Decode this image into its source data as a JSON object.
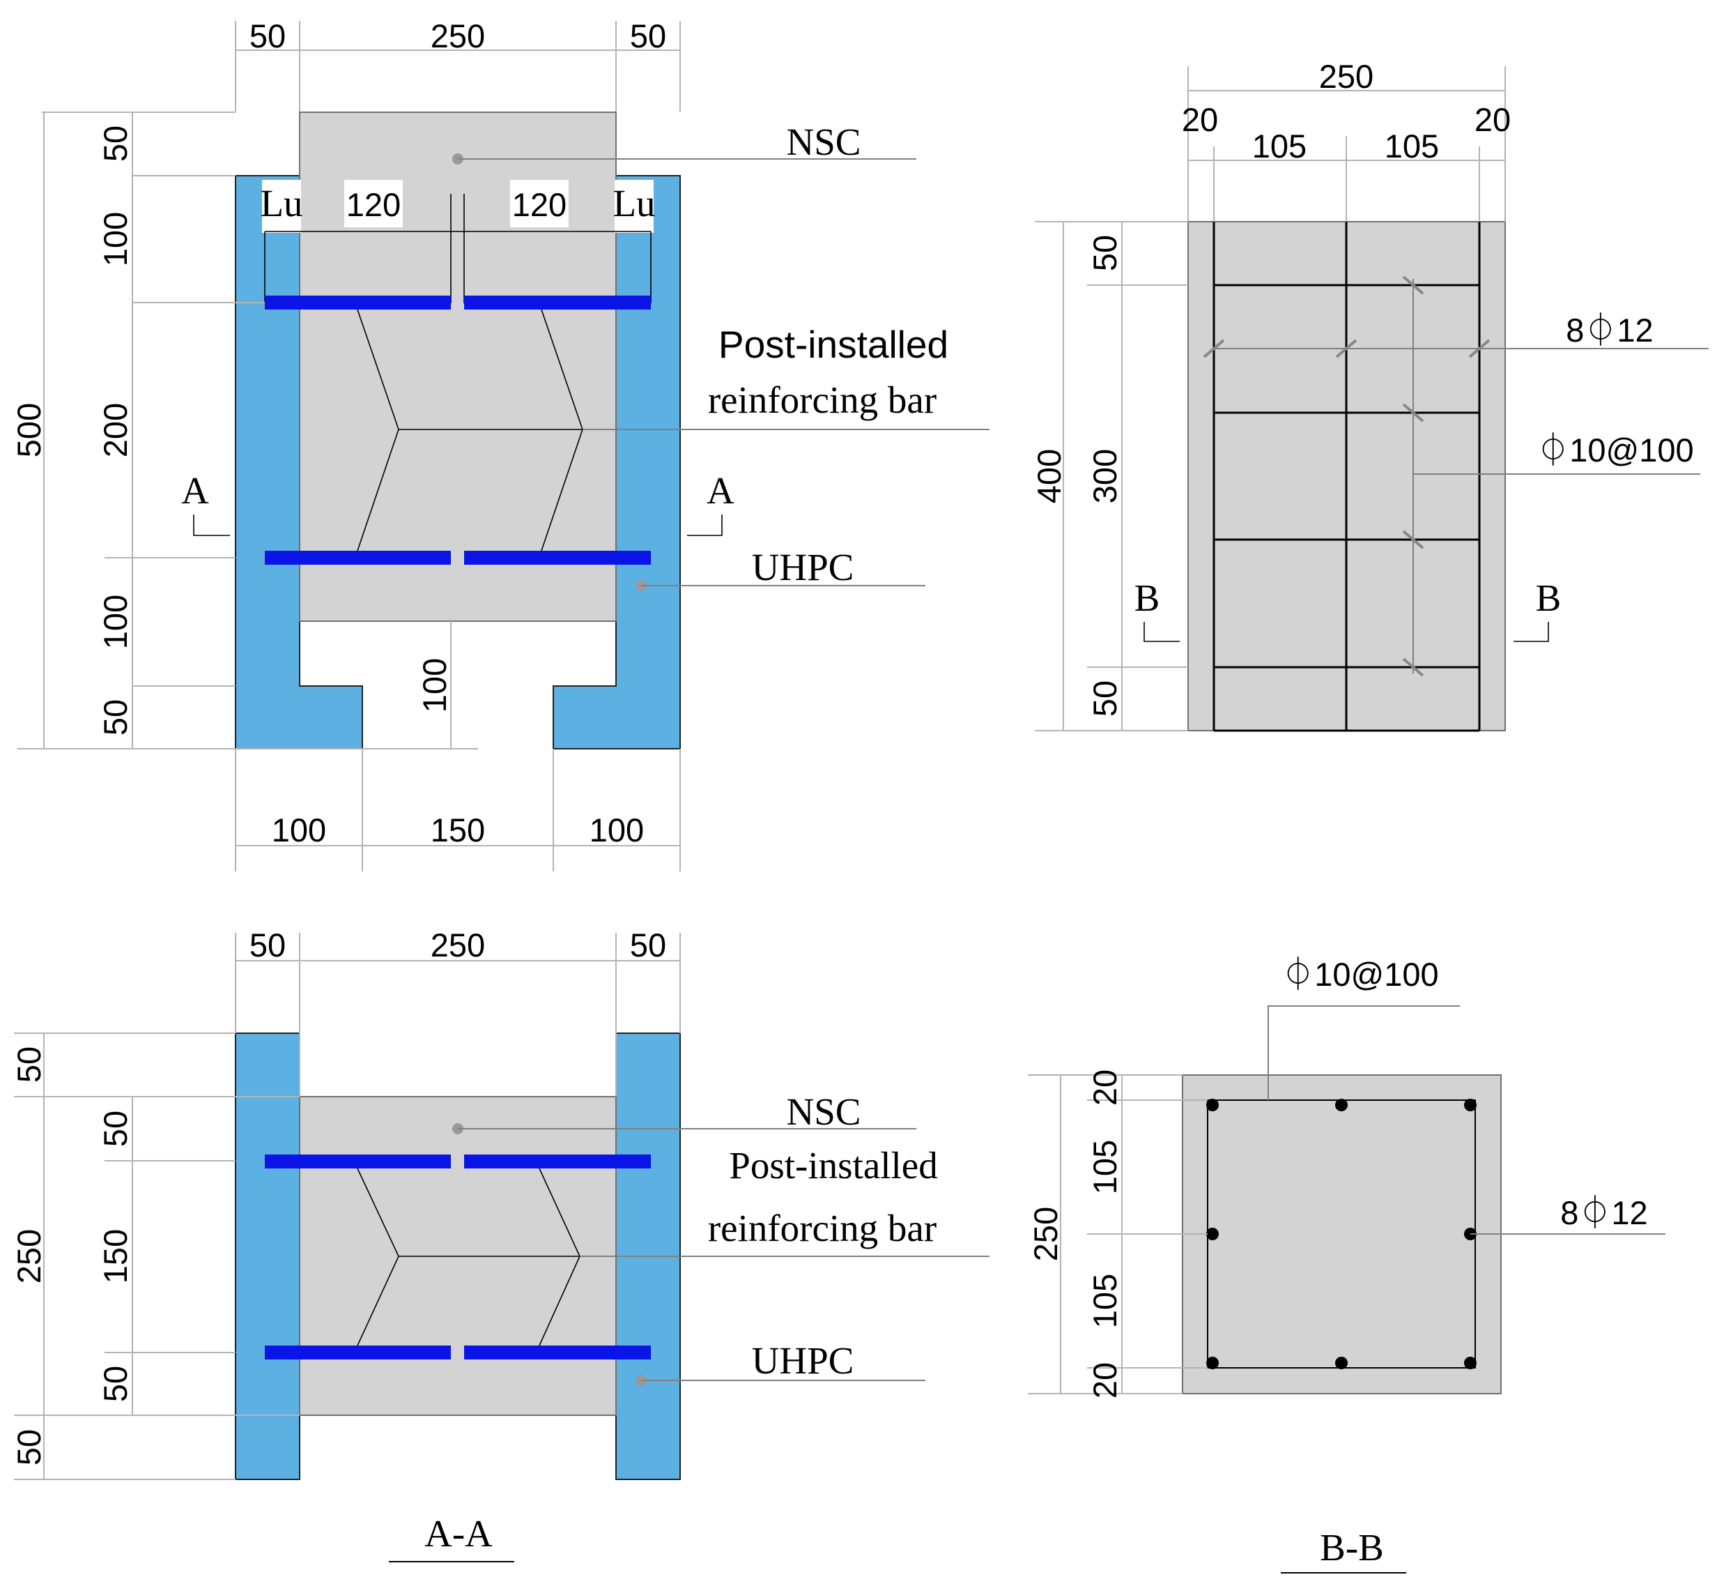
{
  "colors": {
    "nsc": "#d3d3d3",
    "uhpc": "#5db0e2",
    "rebar": "#0a14e6"
  },
  "labels": {
    "nsc": "NSC",
    "uhpc": "UHPC",
    "post_line1": "Post-installed",
    "post_line2": "reinforcing bar",
    "section_a": "A",
    "section_b": "B",
    "lu": "Lu",
    "rebar_long": "8⏀12",
    "stirrup": "⏀10@100",
    "title_aa": "A-A",
    "title_bb": "B-B"
  },
  "top_left": {
    "top": [
      "50",
      "250",
      "50"
    ],
    "bottom": [
      "100",
      "150",
      "100"
    ],
    "left_total": "500",
    "left": [
      "50",
      "100",
      "200",
      "100",
      "50"
    ],
    "inner": [
      "120",
      "120"
    ],
    "notch": "100"
  },
  "top_right": {
    "top_total": "250",
    "top": [
      "20",
      "105",
      "105",
      "20"
    ],
    "left_total": "400",
    "left": [
      "50",
      "300",
      "50"
    ]
  },
  "bottom_left": {
    "top": [
      "50",
      "250",
      "50"
    ],
    "left_total": "250",
    "outer": [
      "50",
      "50"
    ],
    "inner": [
      "50",
      "150",
      "50"
    ]
  },
  "bottom_right": {
    "left_total": "250",
    "left": [
      "20",
      "105",
      "105",
      "20"
    ]
  }
}
